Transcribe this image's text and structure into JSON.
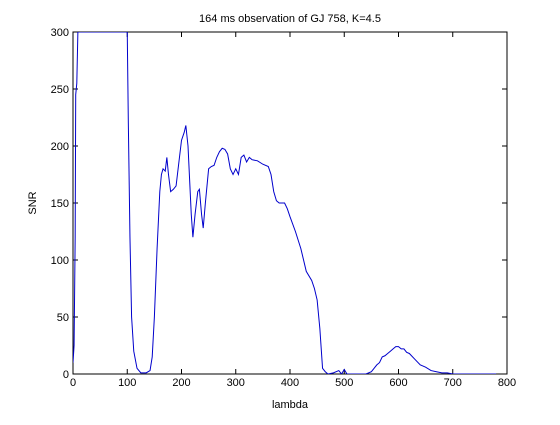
{
  "chart_data": {
    "type": "line",
    "title": "164 ms observation of GJ 758, K=4.5",
    "xlabel": "lambda",
    "ylabel": "SNR",
    "x": [
      0,
      2,
      4,
      5,
      7,
      9,
      100,
      102,
      105,
      108,
      112,
      118,
      125,
      135,
      142,
      146,
      150,
      155,
      160,
      163,
      166,
      170,
      173,
      176,
      180,
      185,
      190,
      195,
      200,
      205,
      208,
      212,
      215,
      218,
      221,
      225,
      230,
      233,
      237,
      240,
      244,
      250,
      255,
      260,
      265,
      270,
      275,
      280,
      285,
      290,
      295,
      300,
      305,
      310,
      315,
      320,
      325,
      330,
      340,
      350,
      360,
      365,
      370,
      375,
      380,
      390,
      395,
      400,
      410,
      420,
      430,
      440,
      445,
      450,
      455,
      460,
      465,
      470,
      480,
      490,
      495,
      500,
      505,
      510,
      540,
      550,
      555,
      560,
      565,
      570,
      575,
      580,
      585,
      590,
      595,
      600,
      605,
      610,
      615,
      620,
      630,
      640,
      650,
      660,
      670,
      680,
      690,
      700,
      720,
      740,
      760,
      780
    ],
    "series": [
      {
        "name": "SNR",
        "color": "#0000cc",
        "values": [
          10,
          25,
          120,
          245,
          255,
          300,
          300,
          220,
          120,
          50,
          20,
          5,
          1,
          1,
          3,
          15,
          50,
          110,
          160,
          175,
          180,
          178,
          190,
          175,
          160,
          162,
          165,
          185,
          205,
          212,
          218,
          200,
          170,
          140,
          120,
          140,
          160,
          162,
          140,
          128,
          150,
          180,
          182,
          183,
          190,
          195,
          198,
          197,
          193,
          180,
          175,
          180,
          175,
          190,
          192,
          186,
          190,
          188,
          187,
          184,
          182,
          175,
          160,
          152,
          150,
          150,
          145,
          138,
          125,
          110,
          90,
          82,
          75,
          65,
          40,
          5,
          2,
          0,
          1,
          3,
          0,
          4,
          0,
          0,
          0,
          2,
          5,
          8,
          10,
          15,
          16,
          18,
          20,
          22,
          24,
          24,
          22,
          22,
          19,
          18,
          13,
          8,
          6,
          3,
          2,
          1,
          1,
          0,
          0,
          0,
          0,
          0
        ]
      }
    ],
    "xlim": [
      0,
      800
    ],
    "ylim": [
      0,
      300
    ],
    "xticks": [
      0,
      100,
      200,
      300,
      400,
      500,
      600,
      700,
      800
    ],
    "yticks": [
      0,
      50,
      100,
      150,
      200,
      250,
      300
    ]
  }
}
